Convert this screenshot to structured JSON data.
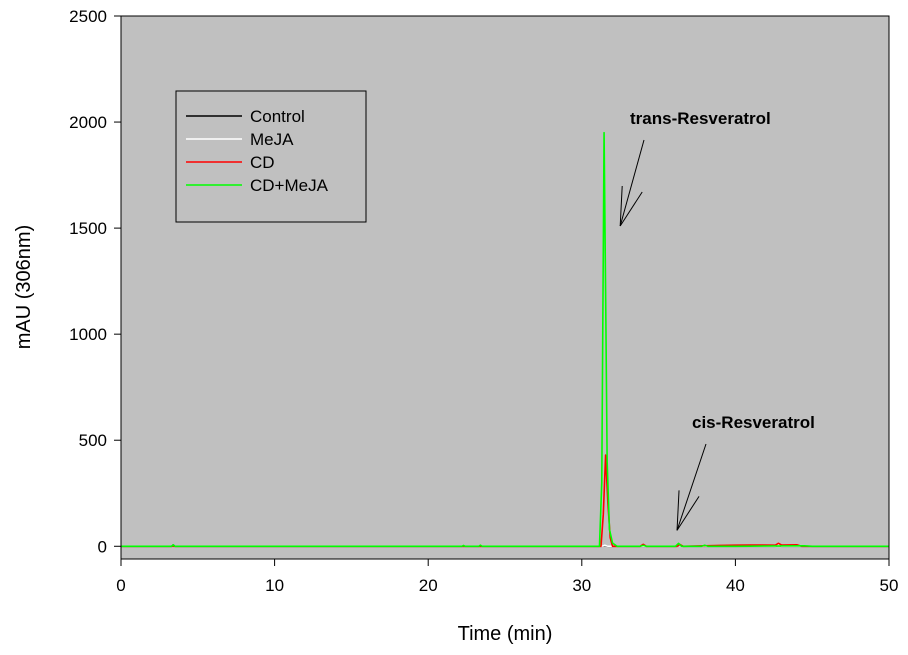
{
  "chart_data": {
    "type": "line",
    "xlabel": "Time (min)",
    "ylabel": "mAU (306nm)",
    "xlim": [
      0,
      50
    ],
    "ylim": [
      0,
      2500
    ],
    "y_axis_min_display": -60,
    "xticks": [
      0,
      10,
      20,
      30,
      40,
      50
    ],
    "yticks": [
      0,
      500,
      1000,
      1500,
      2000,
      2500
    ],
    "grid": false,
    "plot_background": "#c0c0c0",
    "legend_position": "top-left",
    "series": [
      {
        "name": "Control",
        "color": "#000000",
        "x": [
          0,
          3.3,
          3.4,
          3.5,
          10,
          20,
          30,
          31.3,
          31.5,
          31.7,
          33,
          36.2,
          36.4,
          36.6,
          40,
          42.6,
          42.8,
          43,
          45,
          50
        ],
        "y": [
          0,
          0,
          6,
          0,
          0,
          0,
          0,
          0,
          3,
          0,
          0,
          0,
          4,
          0,
          0,
          0,
          5,
          0,
          0,
          0
        ]
      },
      {
        "name": "MeJA",
        "color": "#ffffff",
        "x": [
          0,
          10,
          20,
          30,
          31.3,
          31.5,
          31.7,
          33,
          36.2,
          36.4,
          36.6,
          40,
          42.6,
          42.8,
          43,
          45,
          50
        ],
        "y": [
          0,
          0,
          0,
          0,
          0,
          5,
          0,
          0,
          0,
          4,
          0,
          0,
          0,
          6,
          0,
          0,
          0
        ]
      },
      {
        "name": "CD",
        "color": "#ff0000",
        "x": [
          0,
          10,
          20,
          31.25,
          31.4,
          31.55,
          31.7,
          31.85,
          32,
          33.8,
          34,
          34.2,
          36.2,
          36.4,
          36.6,
          39,
          40,
          41,
          42.6,
          42.8,
          43,
          44,
          44.3,
          45,
          50
        ],
        "y": [
          0,
          0,
          0,
          0,
          150,
          430,
          200,
          40,
          0,
          0,
          9,
          0,
          0,
          8,
          0,
          4,
          5,
          6,
          5,
          14,
          6,
          7,
          0,
          0,
          0
        ]
      },
      {
        "name": "CD+MeJA",
        "color": "#00ff00",
        "x": [
          0,
          3.3,
          3.4,
          3.5,
          10,
          22.2,
          22.3,
          22.4,
          23.3,
          23.4,
          23.5,
          30,
          31.15,
          31.3,
          31.45,
          31.55,
          31.65,
          31.8,
          32,
          32.3,
          33.8,
          34,
          34.2,
          36.1,
          36.3,
          36.5,
          37.8,
          38,
          38.2,
          40,
          44.5,
          45,
          50
        ],
        "y": [
          0,
          0,
          7,
          0,
          0,
          0,
          4,
          0,
          0,
          5,
          0,
          0,
          0,
          300,
          1950,
          1200,
          400,
          80,
          15,
          0,
          0,
          4,
          0,
          0,
          14,
          0,
          0,
          5,
          0,
          0,
          2,
          0,
          0
        ]
      }
    ],
    "annotations": [
      {
        "text": "trans-Resveratrol",
        "x": 32.5,
        "y": 1510
      },
      {
        "text": "cis-Resveratrol",
        "x": 36.2,
        "y": 75
      }
    ]
  }
}
